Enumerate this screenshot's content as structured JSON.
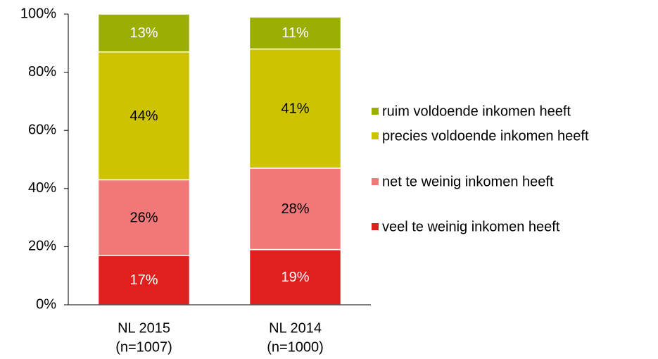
{
  "chart_data": {
    "type": "stacked_bar",
    "categories": [
      [
        "NL 2015",
        "(n=1007)"
      ],
      [
        "NL 2014",
        "(n=1000)"
      ]
    ],
    "series": [
      {
        "name": "veel te weinig inkomen heeft",
        "color": "#e0201f",
        "label_color": "#ffffff",
        "values": [
          17,
          19
        ],
        "value_labels": [
          "17%",
          "19%"
        ]
      },
      {
        "name": "net te weinig inkomen heeft",
        "color": "#f07878",
        "label_color": "#000000",
        "values": [
          26,
          28
        ],
        "value_labels": [
          "26%",
          "28%"
        ]
      },
      {
        "name": "precies voldoende inkomen heeft",
        "color": "#cdc300",
        "label_color": "#000000",
        "values": [
          44,
          41
        ],
        "value_labels": [
          "44%",
          "41%"
        ]
      },
      {
        "name": "ruim voldoende inkomen heeft",
        "color": "#9aae04",
        "label_color": "#ffffff",
        "values": [
          13,
          11
        ],
        "value_labels": [
          "13%",
          "11%"
        ]
      }
    ],
    "ylim": [
      0,
      100
    ],
    "yticks": [
      {
        "value": 0,
        "label": "0%"
      },
      {
        "value": 20,
        "label": "20%"
      },
      {
        "value": 40,
        "label": "40%"
      },
      {
        "value": 60,
        "label": "60%"
      },
      {
        "value": 80,
        "label": "80%"
      },
      {
        "value": 100,
        "label": "100%"
      }
    ],
    "legend": "right"
  }
}
